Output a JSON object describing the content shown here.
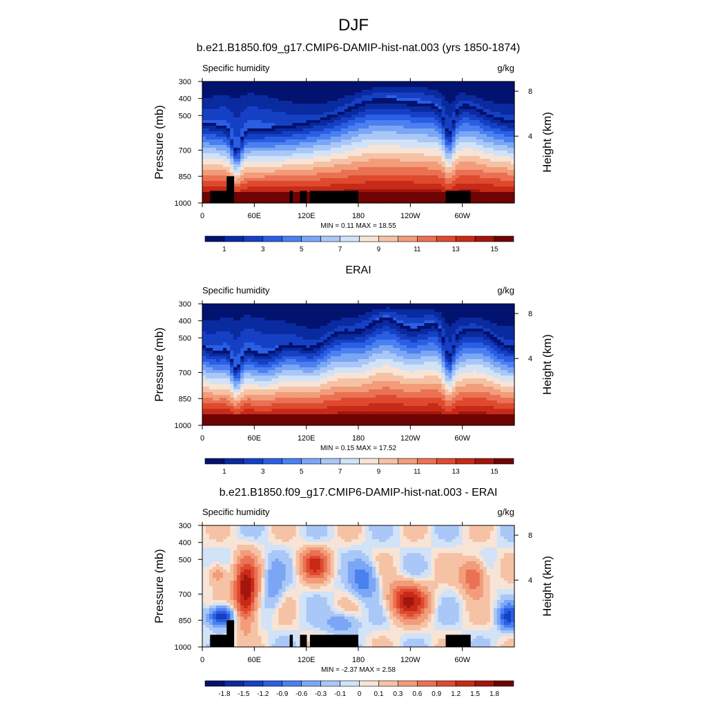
{
  "figure": {
    "title": "DJF"
  },
  "chart_data": [
    {
      "type": "heatmap",
      "title": "b.e21.B1850.f09_g17.CMIP6-DAMIP-hist-nat.003 (yrs 1850-1874)",
      "left_label": "Specific humidity",
      "right_label": "g/kg",
      "ylabel": "Pressure (mb)",
      "ylabel_right": "Height (km)",
      "xlabel": "",
      "x_ticks": [
        "0",
        "60E",
        "120E",
        "180",
        "120W",
        "60W"
      ],
      "y_ticks": [
        "300",
        "400",
        "500",
        "700",
        "850",
        "1000"
      ],
      "y2_ticks": [
        "8",
        "4"
      ],
      "xlim": [
        0,
        360
      ],
      "ylim": [
        1000,
        300
      ],
      "stats": "MIN =   0.11  MAX =  18.55",
      "min": 0.11,
      "max": 18.55,
      "colorbar_levels": [
        0,
        1,
        2,
        3,
        4,
        5,
        6,
        7,
        8,
        9,
        10,
        11,
        12,
        13,
        14,
        15,
        16
      ],
      "colorbar_labels": [
        "1",
        "3",
        "5",
        "7",
        "9",
        "11",
        "13",
        "15"
      ]
    },
    {
      "type": "heatmap",
      "title": "ERAI",
      "left_label": "Specific humidity",
      "right_label": "g/kg",
      "ylabel": "Pressure (mb)",
      "ylabel_right": "Height (km)",
      "xlabel": "",
      "x_ticks": [
        "0",
        "60E",
        "120E",
        "180",
        "120W",
        "60W"
      ],
      "y_ticks": [
        "300",
        "400",
        "500",
        "700",
        "850",
        "1000"
      ],
      "y2_ticks": [
        "8",
        "4"
      ],
      "xlim": [
        0,
        360
      ],
      "ylim": [
        1000,
        300
      ],
      "stats": "MIN =   0.15  MAX =  17.52",
      "min": 0.15,
      "max": 17.52,
      "colorbar_levels": [
        0,
        1,
        2,
        3,
        4,
        5,
        6,
        7,
        8,
        9,
        10,
        11,
        12,
        13,
        14,
        15,
        16
      ],
      "colorbar_labels": [
        "1",
        "3",
        "5",
        "7",
        "9",
        "11",
        "13",
        "15"
      ]
    },
    {
      "type": "heatmap",
      "title": "b.e21.B1850.f09_g17.CMIP6-DAMIP-hist-nat.003 - ERAI",
      "left_label": "Specific humidity",
      "right_label": "g/kg",
      "ylabel": "Pressure (mb)",
      "ylabel_right": "Height (km)",
      "xlabel": "",
      "x_ticks": [
        "0",
        "60E",
        "120E",
        "180",
        "120W",
        "60W"
      ],
      "y_ticks": [
        "300",
        "400",
        "500",
        "700",
        "850",
        "1000"
      ],
      "y2_ticks": [
        "8",
        "4"
      ],
      "xlim": [
        0,
        360
      ],
      "ylim": [
        1000,
        300
      ],
      "stats": "MIN =  -2.37  MAX =   2.58",
      "min": -2.37,
      "max": 2.58,
      "colorbar_levels": [
        -2.1,
        -1.8,
        -1.5,
        -1.2,
        -0.9,
        -0.6,
        -0.3,
        -0.1,
        0,
        0.1,
        0.3,
        0.6,
        0.9,
        1.2,
        1.5,
        1.8,
        2.1
      ],
      "colorbar_labels": [
        "-1.8",
        "-1.5",
        "-1.2",
        "-0.9",
        "-0.6",
        "-0.3",
        "-0.1",
        "0",
        "0.1",
        "0.3",
        "0.6",
        "0.9",
        "1.2",
        "1.5",
        "1.8"
      ]
    }
  ],
  "colormap": [
    "#02126f",
    "#0a2aa0",
    "#1640c4",
    "#2a5ee3",
    "#4a80f0",
    "#7ba6f5",
    "#a9c7f7",
    "#d2e2f7",
    "#f7e4d6",
    "#f6c2a5",
    "#f29c7a",
    "#ea7153",
    "#df4a2e",
    "#c72a17",
    "#a3150d",
    "#6e0405"
  ],
  "topography_color": "#000000"
}
